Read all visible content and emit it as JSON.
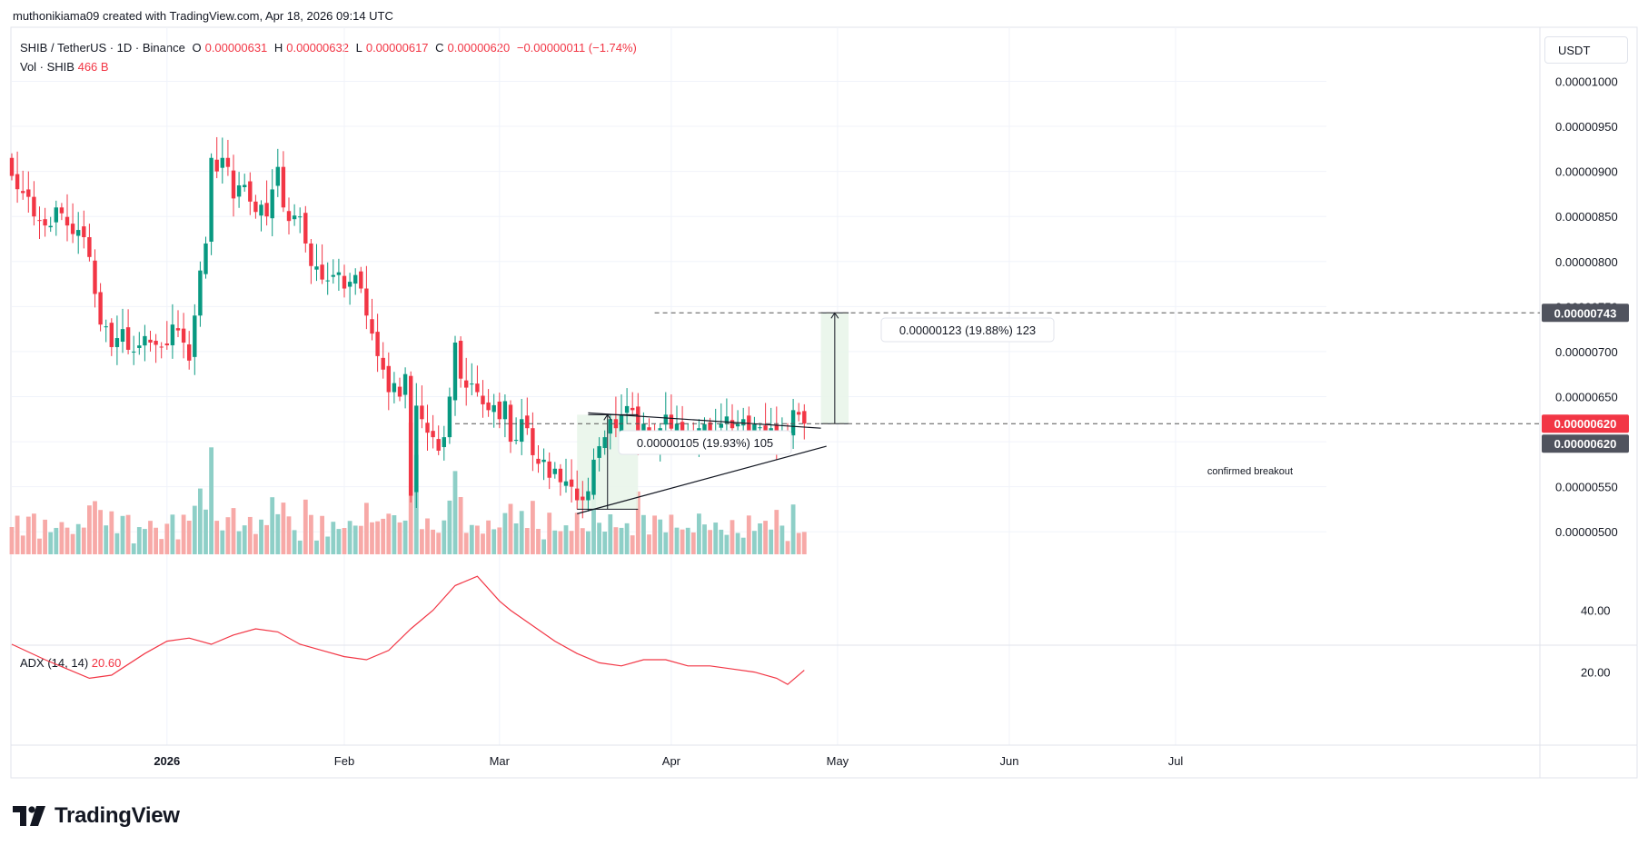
{
  "attribution": "muthonikiama09 created with TradingView.com, Apr 18, 2026 09:14 UTC",
  "symbol": {
    "title": "SHIB / TetherUS · 1D · Binance",
    "open_label": "O",
    "open": "0.00000631",
    "high_label": "H",
    "high": "0.00000632",
    "low_label": "L",
    "low": "0.00000617",
    "close_label": "C",
    "close": "0.00000620",
    "change": "−0.00000011 (−1.74%)"
  },
  "volume_legend": {
    "label": "Vol · SHIB",
    "value": "466 B"
  },
  "currency_button": "USDT",
  "adx_legend": {
    "label": "ADX (14, 14)",
    "value": "20.60"
  },
  "annotations": {
    "measure_small": "0.00000105 (19.93%) 105",
    "measure_large": "0.00000123 (19.88%) 123",
    "breakout_label": "confirmed breakout"
  },
  "price_badges": {
    "target": "0.00000743",
    "last": "0.00000620",
    "prev": "0.00000620"
  },
  "brand": "TradingView",
  "colors": {
    "up": "#089981",
    "down": "#f23645",
    "vol_up": "#8ecfc7",
    "vol_down": "#f7a9a7",
    "adx": "#f23645",
    "grid": "#f0f3fa"
  },
  "chart_data": [
    {
      "type": "candlestick",
      "title": "SHIB / TetherUS · 1D · Binance",
      "ylabel": "USDT",
      "ylim": [
        4.75e-06,
        1.06e-05
      ],
      "y_ticks": [
        "0.00000500",
        "0.00000550",
        "0.00000600",
        "0.00000650",
        "0.00000700",
        "0.00000750",
        "0.00000800",
        "0.00000850",
        "0.00000900",
        "0.00000950",
        "0.00001000"
      ],
      "x_ticks": [
        "2026",
        "Feb",
        "Mar",
        "Apr",
        "May",
        "Jun",
        "Jul"
      ],
      "start_date": "2025-12-04",
      "anchor_closes": [
        [
          0,
          8.95
        ],
        [
          4,
          8.5
        ],
        [
          6,
          8.4
        ],
        [
          8,
          8.6
        ],
        [
          10,
          8.4
        ],
        [
          12,
          8.35
        ],
        [
          14,
          8.05
        ],
        [
          16,
          7.3
        ],
        [
          18,
          7.05
        ],
        [
          20,
          7.25
        ],
        [
          22,
          7.0
        ],
        [
          25,
          7.1
        ],
        [
          27,
          7.05
        ],
        [
          29,
          7.3
        ],
        [
          31,
          7.1
        ],
        [
          32,
          6.9
        ],
        [
          33,
          7.4
        ],
        [
          34,
          7.9
        ],
        [
          35,
          8.2
        ],
        [
          36,
          9.15
        ],
        [
          37,
          9.0
        ],
        [
          38,
          9.15
        ],
        [
          39,
          9.05
        ],
        [
          40,
          8.7
        ],
        [
          42,
          8.85
        ],
        [
          44,
          8.55
        ],
        [
          46,
          8.5
        ],
        [
          47,
          8.8
        ],
        [
          48,
          9.05
        ],
        [
          49,
          8.6
        ],
        [
          50,
          8.45
        ],
        [
          52,
          8.5
        ],
        [
          53,
          8.2
        ],
        [
          54,
          7.95
        ],
        [
          56,
          7.8
        ],
        [
          58,
          7.85
        ],
        [
          60,
          7.7
        ],
        [
          62,
          7.85
        ],
        [
          63,
          7.7
        ],
        [
          64,
          7.4
        ],
        [
          65,
          7.2
        ],
        [
          66,
          6.95
        ],
        [
          67,
          6.8
        ],
        [
          68,
          6.55
        ],
        [
          69,
          6.65
        ],
        [
          70,
          6.5
        ],
        [
          71,
          6.75
        ],
        [
          72,
          5.4
        ],
        [
          73,
          6.4
        ],
        [
          74,
          6.25
        ],
        [
          75,
          6.1
        ],
        [
          76,
          6.05
        ],
        [
          77,
          5.9
        ],
        [
          78,
          6.05
        ],
        [
          79,
          6.5
        ],
        [
          80,
          7.1
        ],
        [
          81,
          6.7
        ],
        [
          82,
          6.6
        ],
        [
          84,
          6.55
        ],
        [
          86,
          6.35
        ],
        [
          88,
          6.25
        ],
        [
          89,
          6.45
        ],
        [
          90,
          6.0
        ],
        [
          92,
          6.25
        ],
        [
          93,
          6.15
        ],
        [
          94,
          5.85
        ],
        [
          96,
          5.8
        ],
        [
          97,
          5.6
        ],
        [
          98,
          5.7
        ],
        [
          99,
          5.55
        ],
        [
          101,
          5.5
        ],
        [
          102,
          5.35
        ],
        [
          103,
          5.35
        ],
        [
          104,
          5.45
        ],
        [
          105,
          5.8
        ],
        [
          106,
          5.95
        ],
        [
          107,
          6.05
        ],
        [
          108,
          6.25
        ],
        [
          109,
          6.15
        ],
        [
          110,
          6.3
        ],
        [
          112,
          6.35
        ],
        [
          113,
          6.0
        ],
        [
          114,
          6.2
        ],
        [
          115,
          6.1
        ],
        [
          116,
          6.0
        ],
        [
          117,
          6.15
        ],
        [
          118,
          6.3
        ],
        [
          120,
          6.2
        ],
        [
          121,
          6.05
        ],
        [
          122,
          6.05
        ],
        [
          124,
          6.15
        ],
        [
          126,
          6.1
        ],
        [
          128,
          6.2
        ],
        [
          130,
          6.15
        ],
        [
          132,
          6.25
        ],
        [
          134,
          6.2
        ],
        [
          136,
          6.05
        ],
        [
          137,
          6.15
        ],
        [
          138,
          6.0
        ],
        [
          140,
          6.05
        ],
        [
          141,
          6.35
        ],
        [
          142,
          6.3
        ],
        [
          143,
          6.2
        ]
      ],
      "volume_label": "Vol · SHIB",
      "volume_note": "volume bars per day, 466 B on last bar"
    },
    {
      "type": "line",
      "title": "ADX (14, 14)",
      "ylim": [
        14,
        54
      ],
      "y_ticks": [
        "20.00",
        "40.00"
      ],
      "x": [
        0,
        6,
        10,
        14,
        18,
        24,
        28,
        32,
        36,
        40,
        44,
        48,
        52,
        56,
        60,
        64,
        68,
        72,
        76,
        80,
        84,
        88,
        90,
        94,
        98,
        102,
        106,
        110,
        114,
        118,
        122,
        126,
        130,
        134,
        138,
        140,
        143
      ],
      "values": [
        29,
        24,
        21,
        18,
        19,
        26,
        30,
        31,
        29,
        32,
        34,
        33,
        29,
        27,
        25,
        24,
        27,
        34,
        40,
        48,
        51,
        43,
        40,
        35,
        30,
        26,
        23,
        22,
        24,
        24,
        22,
        22,
        21,
        20,
        18,
        16,
        20.6
      ]
    }
  ]
}
